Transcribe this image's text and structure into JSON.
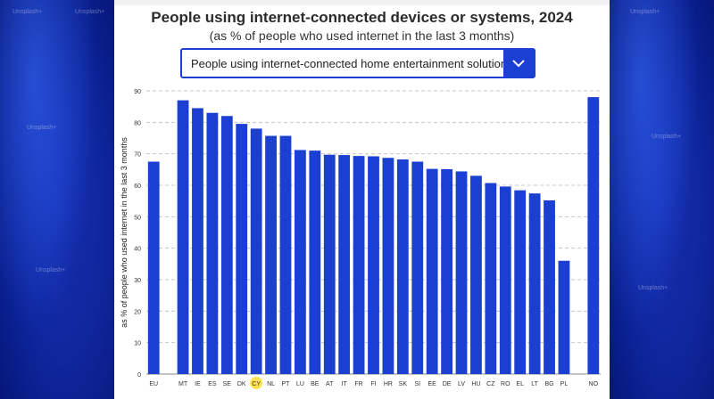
{
  "header": {
    "title": "People using internet-connected devices or systems, 2024",
    "subtitle": "(as % of people who used internet in the last 3 months)"
  },
  "dropdown": {
    "selected": "People using internet-connected home entertainment solutions",
    "icon": "chevron-down-icon"
  },
  "watermark": "Unsplash+",
  "colors": {
    "bar": "#1b3fd1",
    "highlight": "#ffe34d",
    "background": "#0a2a9e"
  },
  "chart_data": {
    "type": "bar",
    "title": "People using internet-connected devices or systems, 2024",
    "subtitle": "(as % of people who used internet in the last 3 months)",
    "xlabel": "",
    "ylabel": "as % of people who used internet in the last 3 months",
    "ylim": [
      0,
      90
    ],
    "yticks": [
      0,
      10,
      20,
      30,
      40,
      50,
      60,
      70,
      80,
      90
    ],
    "grid": true,
    "highlighted_category": "CY",
    "categories": [
      "EU",
      "",
      "MT",
      "IE",
      "ES",
      "SE",
      "DK",
      "CY",
      "NL",
      "PT",
      "LU",
      "BE",
      "AT",
      "IT",
      "FR",
      "FI",
      "HR",
      "SK",
      "SI",
      "EE",
      "DE",
      "LV",
      "HU",
      "CZ",
      "RO",
      "EL",
      "LT",
      "BG",
      "PL",
      "",
      "NO"
    ],
    "values": [
      67.5,
      null,
      87,
      84.5,
      83,
      82,
      79.5,
      78,
      75.7,
      75.7,
      71.2,
      71,
      69.7,
      69.6,
      69.3,
      69.2,
      68.7,
      68.2,
      67.5,
      65.2,
      65.1,
      64.4,
      63,
      60.7,
      59.6,
      58.4,
      57.4,
      55.2,
      36,
      null,
      88
    ]
  }
}
